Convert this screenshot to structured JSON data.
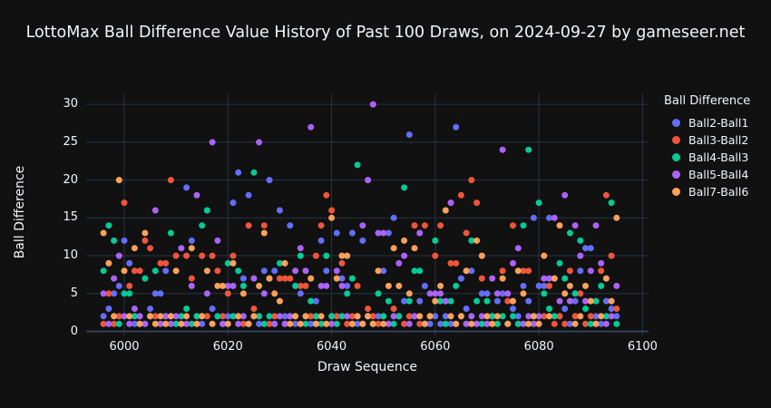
{
  "title": "LottoMax Ball Difference Value History of Past 100 Draws, on 2024-09-27 by gameseer.net",
  "xaxis": {
    "title": "Draw Sequence",
    "ticks": [
      6000,
      6020,
      6040,
      6060,
      6080,
      6100
    ],
    "range": [
      5992.5,
      6101.5
    ]
  },
  "yaxis": {
    "title": "Ball Difference",
    "ticks": [
      0,
      5,
      10,
      15,
      20,
      25,
      30
    ],
    "range": [
      -1.5,
      31.5
    ]
  },
  "legend": {
    "title": "Ball Difference"
  },
  "theme": {
    "background": "#111111",
    "text_color": "#f2f5fa",
    "grid_color": "#263345",
    "zeroline_color": "#31405a"
  },
  "chart_data": {
    "type": "scatter",
    "title": "LottoMax Ball Difference Value History of Past 100 Draws, on 2024-09-27 by gameseer.net",
    "xlabel": "Draw Sequence",
    "ylabel": "Ball Difference",
    "xlim": [
      5992.5,
      6101.5
    ],
    "ylim": [
      -1.5,
      31.5
    ],
    "grid": true,
    "legend_position": "right",
    "marker_size": 7,
    "x": [
      5996,
      5997,
      5998,
      5999,
      6000,
      6001,
      6002,
      6003,
      6004,
      6005,
      6006,
      6007,
      6008,
      6009,
      6010,
      6011,
      6012,
      6013,
      6014,
      6015,
      6016,
      6017,
      6018,
      6019,
      6020,
      6021,
      6022,
      6023,
      6024,
      6025,
      6026,
      6027,
      6028,
      6029,
      6030,
      6031,
      6032,
      6033,
      6034,
      6035,
      6036,
      6037,
      6038,
      6039,
      6040,
      6041,
      6042,
      6043,
      6044,
      6045,
      6046,
      6047,
      6048,
      6049,
      6050,
      6051,
      6052,
      6053,
      6054,
      6055,
      6056,
      6057,
      6058,
      6059,
      6060,
      6061,
      6062,
      6063,
      6064,
      6065,
      6066,
      6067,
      6068,
      6069,
      6070,
      6071,
      6072,
      6073,
      6074,
      6075,
      6076,
      6077,
      6078,
      6079,
      6080,
      6081,
      6082,
      6083,
      6084,
      6085,
      6086,
      6087,
      6088,
      6089,
      6090,
      6091,
      6092,
      6093,
      6094,
      6095
    ],
    "series": [
      {
        "name": "Ball2-Ball1",
        "color": "#636efa",
        "values": [
          2,
          3,
          5,
          6,
          12,
          9,
          1,
          2,
          1,
          3,
          5,
          5,
          8,
          2,
          1,
          2,
          19,
          12,
          2,
          1,
          16,
          3,
          2,
          1,
          2,
          17,
          21,
          7,
          18,
          2,
          1,
          8,
          20,
          8,
          16,
          2,
          14,
          1,
          5,
          2,
          1,
          4,
          12,
          8,
          2,
          13,
          7,
          6,
          13,
          1,
          12,
          2,
          1,
          2,
          8,
          13,
          15,
          2,
          4,
          26,
          2,
          4,
          6,
          1,
          2,
          1,
          2,
          1,
          27,
          7,
          3,
          8,
          1,
          5,
          5,
          2,
          4,
          5,
          1,
          3,
          2,
          6,
          4,
          15,
          6,
          6,
          15,
          7,
          2,
          3,
          1,
          4,
          8,
          11,
          11,
          2,
          1,
          4,
          3,
          2
        ]
      },
      {
        "name": "Ball3-Ball2",
        "color": "#ef553b",
        "values": [
          1,
          5,
          1,
          2,
          17,
          6,
          8,
          8,
          12,
          11,
          2,
          9,
          9,
          20,
          10,
          1,
          10,
          7,
          1,
          10,
          2,
          10,
          8,
          2,
          5,
          10,
          2,
          1,
          14,
          3,
          2,
          14,
          1,
          2,
          7,
          7,
          7,
          2,
          6,
          6,
          2,
          10,
          14,
          18,
          16,
          2,
          9,
          1,
          2,
          6,
          1,
          3,
          2,
          1,
          2,
          1,
          3,
          2,
          1,
          2,
          14,
          1,
          14,
          2,
          10,
          14,
          1,
          9,
          9,
          18,
          13,
          20,
          17,
          7,
          1,
          2,
          1,
          8,
          4,
          14,
          1,
          8,
          8,
          2,
          1,
          2,
          6,
          1,
          2,
          1,
          8,
          2,
          5,
          1,
          2,
          1,
          8,
          18,
          10,
          3
        ]
      },
      {
        "name": "Ball4-Ball3",
        "color": "#00cc96",
        "values": [
          8,
          14,
          12,
          1,
          5,
          5,
          2,
          1,
          7,
          2,
          8,
          1,
          2,
          13,
          1,
          2,
          3,
          1,
          2,
          14,
          16,
          1,
          2,
          1,
          9,
          2,
          8,
          6,
          1,
          21,
          2,
          1,
          2,
          1,
          9,
          1,
          2,
          6,
          10,
          1,
          4,
          2,
          1,
          10,
          2,
          1,
          2,
          5,
          7,
          22,
          1,
          2,
          1,
          5,
          2,
          4,
          1,
          2,
          19,
          4,
          8,
          8,
          1,
          2,
          12,
          4,
          1,
          4,
          6,
          2,
          1,
          12,
          4,
          1,
          4,
          2,
          1,
          2,
          1,
          2,
          1,
          14,
          24,
          1,
          17,
          5,
          3,
          2,
          9,
          7,
          13,
          5,
          12,
          3,
          1,
          4,
          6,
          2,
          17,
          1
        ]
      },
      {
        "name": "Ball5-Ball4",
        "color": "#ab63fa",
        "values": [
          5,
          1,
          7,
          10,
          2,
          1,
          3,
          2,
          1,
          2,
          16,
          1,
          2,
          1,
          2,
          11,
          1,
          6,
          18,
          2,
          5,
          25,
          12,
          1,
          6,
          6,
          1,
          2,
          1,
          7,
          25,
          5,
          7,
          1,
          2,
          1,
          2,
          8,
          11,
          8,
          27,
          1,
          6,
          6,
          1,
          8,
          6,
          2,
          1,
          2,
          14,
          20,
          30,
          13,
          13,
          1,
          2,
          9,
          10,
          1,
          2,
          13,
          1,
          5,
          5,
          5,
          4,
          17,
          1,
          2,
          1,
          2,
          1,
          2,
          1,
          7,
          5,
          24,
          5,
          9,
          11,
          1,
          2,
          1,
          2,
          7,
          7,
          15,
          4,
          18,
          4,
          14,
          10,
          4,
          8,
          14,
          9,
          1,
          2,
          6
        ]
      },
      {
        "name": "Ball7-Ball6",
        "color": "#ffa15a",
        "values": [
          13,
          9,
          2,
          20,
          8,
          2,
          11,
          1,
          13,
          2,
          1,
          2,
          1,
          2,
          8,
          1,
          2,
          11,
          1,
          2,
          8,
          1,
          6,
          6,
          1,
          9,
          2,
          5,
          1,
          2,
          6,
          13,
          7,
          5,
          4,
          9,
          1,
          2,
          1,
          2,
          7,
          1,
          2,
          1,
          15,
          7,
          10,
          10,
          1,
          2,
          1,
          2,
          1,
          8,
          1,
          6,
          11,
          6,
          12,
          5,
          11,
          2,
          1,
          2,
          4,
          6,
          16,
          2,
          1,
          2,
          8,
          1,
          12,
          10,
          2,
          1,
          2,
          7,
          1,
          4,
          8,
          5,
          1,
          2,
          1,
          10,
          2,
          7,
          14,
          5,
          6,
          1,
          2,
          6,
          4,
          1,
          2,
          7,
          4,
          15
        ]
      }
    ]
  }
}
